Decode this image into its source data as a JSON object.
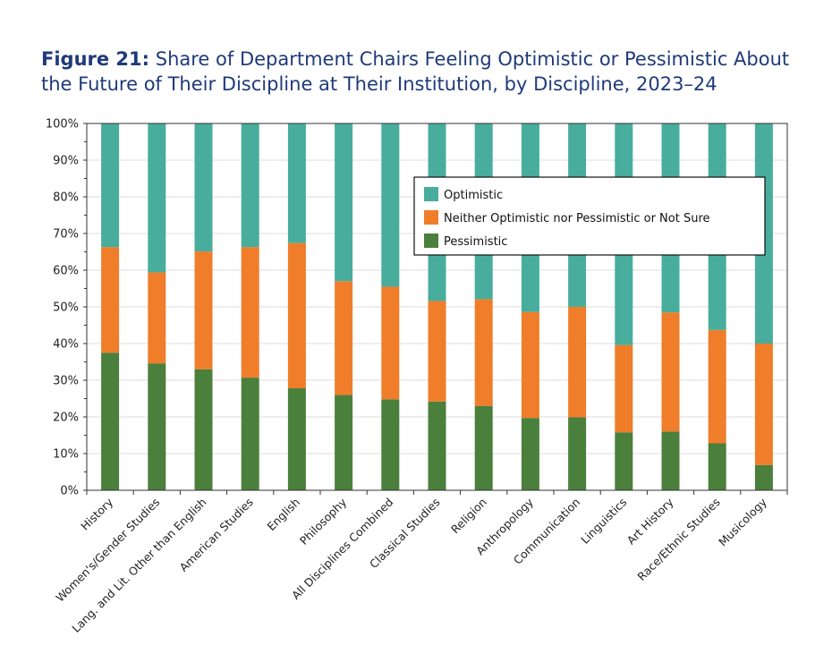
{
  "chart_data": {
    "type": "bar",
    "stacked": true,
    "title_prefix": "Figure 21:",
    "title": "Share of Department Chairs Feeling Optimistic or Pessimistic About the Future of Their Discipline at Their Institution, by Discipline, 2023–24",
    "xlabel": "",
    "ylabel": "",
    "ylim": [
      0,
      100
    ],
    "yticks": [
      "0%",
      "10%",
      "20%",
      "30%",
      "40%",
      "50%",
      "60%",
      "70%",
      "80%",
      "90%",
      "100%"
    ],
    "grid": true,
    "legend_position": "top-right",
    "categories": [
      "History",
      "Women's/Gender Studies",
      "Lang. and Lit. Other than English",
      "American Studies",
      "English",
      "Philosophy",
      "All Disciplines Combined",
      "Classical Studies",
      "Religion",
      "Anthropology",
      "Communication",
      "Linguistics",
      "Art History",
      "Race/Ethnic Studies",
      "Musicology"
    ],
    "series": [
      {
        "name": "Pessimistic",
        "color": "#4a7f3c",
        "values": [
          37.5,
          34.6,
          33.0,
          30.7,
          27.8,
          26.0,
          24.8,
          24.2,
          23.0,
          19.7,
          19.9,
          15.8,
          16.0,
          12.8,
          6.9
        ]
      },
      {
        "name": "Neither Optimistic nor Pessimistic or Not Sure",
        "color": "#f07d2a",
        "values": [
          28.8,
          24.8,
          32.1,
          35.6,
          39.6,
          31.0,
          30.7,
          27.4,
          29.1,
          28.9,
          30.1,
          23.8,
          32.5,
          30.9,
          33.1
        ]
      },
      {
        "name": "Optimistic",
        "color": "#48ad9c",
        "values": [
          33.7,
          40.6,
          34.9,
          33.7,
          32.6,
          43.0,
          44.5,
          48.4,
          47.9,
          51.4,
          50.0,
          60.4,
          51.5,
          56.3,
          60.0
        ]
      }
    ],
    "legend_order": [
      "Optimistic",
      "Neither Optimistic nor Pessimistic or Not Sure",
      "Pessimistic"
    ]
  }
}
